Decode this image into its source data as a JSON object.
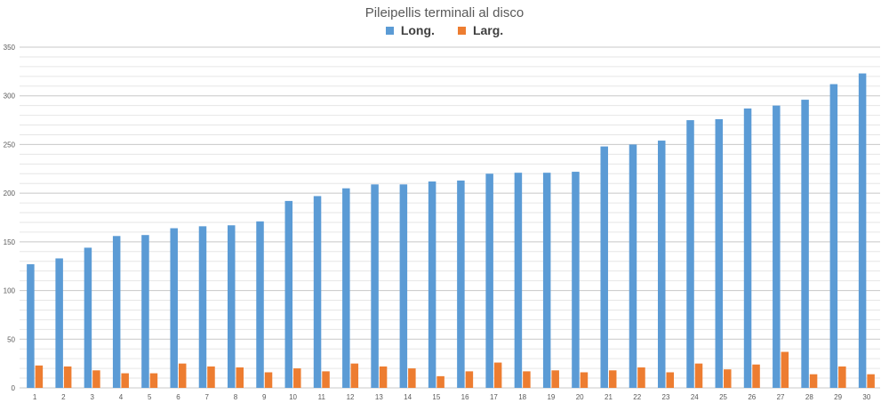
{
  "chart_data": {
    "type": "bar",
    "title": "Pileipellis terminali al disco",
    "xlabel": "",
    "ylabel": "",
    "ylim": [
      0,
      350
    ],
    "yticks": [
      0,
      50,
      100,
      150,
      200,
      250,
      300,
      350
    ],
    "grid": true,
    "legend_position": "top",
    "categories": [
      "1",
      "2",
      "3",
      "4",
      "5",
      "6",
      "7",
      "8",
      "9",
      "10",
      "11",
      "12",
      "13",
      "14",
      "15",
      "16",
      "17",
      "18",
      "19",
      "20",
      "21",
      "22",
      "23",
      "24",
      "25",
      "26",
      "27",
      "28",
      "29",
      "30"
    ],
    "series": [
      {
        "name": "Long.",
        "color": "#5b9bd5",
        "values": [
          127,
          133,
          144,
          156,
          157,
          164,
          166,
          167,
          171,
          192,
          197,
          205,
          209,
          209,
          212,
          213,
          220,
          221,
          221,
          222,
          248,
          250,
          254,
          275,
          276,
          287,
          290,
          296,
          312,
          323
        ]
      },
      {
        "name": "Larg.",
        "color": "#ed7d31",
        "values": [
          23,
          22,
          18,
          15,
          15,
          25,
          22,
          21,
          16,
          20,
          17,
          25,
          22,
          20,
          12,
          17,
          26,
          17,
          18,
          16,
          18,
          21,
          16,
          25,
          19,
          24,
          37,
          14,
          22,
          14
        ]
      }
    ]
  }
}
